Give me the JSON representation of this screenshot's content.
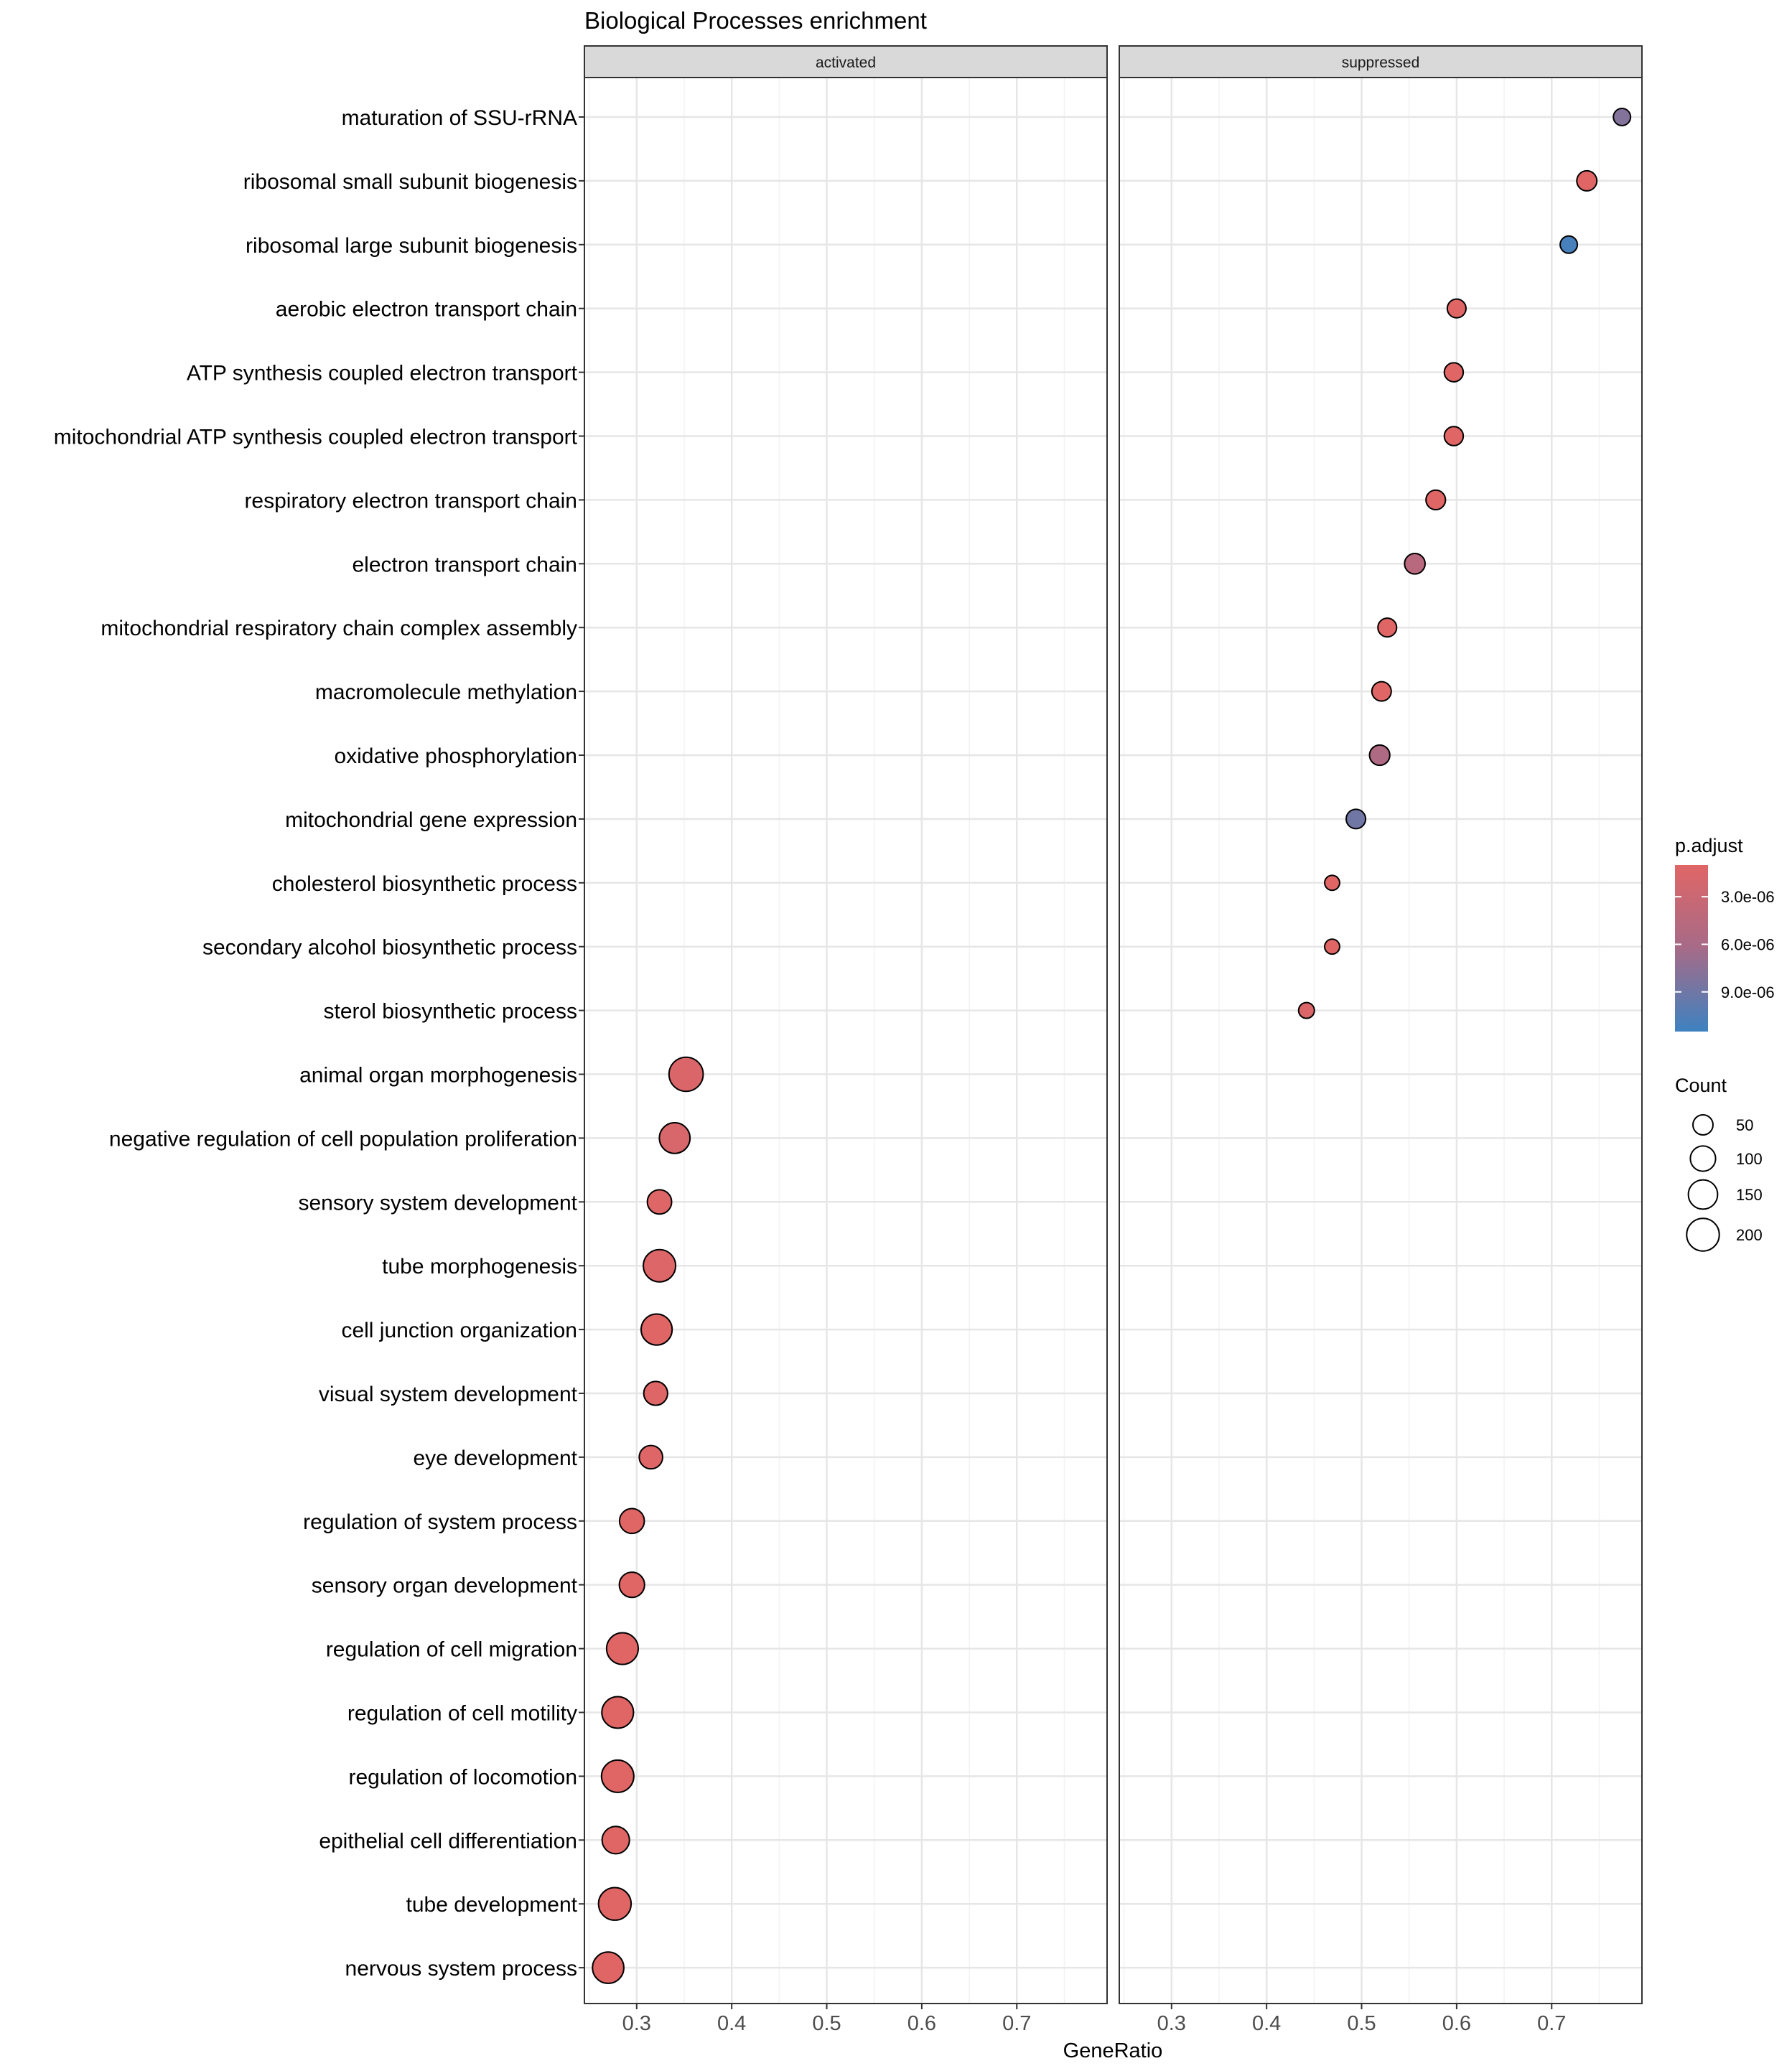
{
  "chart_data": {
    "type": "scatter",
    "title": "Biological Processes enrichment",
    "xlabel": "GeneRatio",
    "ylabel": "",
    "facets": [
      "activated",
      "suppressed"
    ],
    "xlim": [
      0.245,
      0.795
    ],
    "xticks": [
      0.3,
      0.4,
      0.5,
      0.6,
      0.7
    ],
    "xtick_labels": [
      "0.3",
      "0.4",
      "0.5",
      "0.6",
      "0.7"
    ],
    "grid": true,
    "categories": [
      "maturation of SSU-rRNA",
      "ribosomal small subunit biogenesis",
      "ribosomal large subunit biogenesis",
      "aerobic electron transport chain",
      "ATP synthesis coupled electron transport",
      "mitochondrial ATP synthesis coupled electron transport",
      "respiratory electron transport chain",
      "electron transport chain",
      "mitochondrial respiratory chain complex assembly",
      "macromolecule methylation",
      "oxidative phosphorylation",
      "mitochondrial gene expression",
      "cholesterol biosynthetic process",
      "secondary alcohol biosynthetic process",
      "sterol biosynthetic process",
      "animal organ morphogenesis",
      "negative regulation of cell population proliferation",
      "sensory system development",
      "tube morphogenesis",
      "cell junction organization",
      "visual system development",
      "eye development",
      "regulation of system process",
      "sensory organ development",
      "regulation of cell migration",
      "regulation of cell motility",
      "regulation of locomotion",
      "epithelial cell differentiation",
      "tube development",
      "nervous system process"
    ],
    "points": [
      {
        "term": "maturation of SSU-rRNA",
        "facet": "suppressed",
        "gene_ratio": 0.774,
        "count": 30,
        "p_adjust": 8e-06
      },
      {
        "term": "ribosomal small subunit biogenesis",
        "facet": "suppressed",
        "gene_ratio": 0.737,
        "count": 50,
        "p_adjust": 1e-06
      },
      {
        "term": "ribosomal large subunit biogenesis",
        "facet": "suppressed",
        "gene_ratio": 0.718,
        "count": 30,
        "p_adjust": 1.1e-05
      },
      {
        "term": "aerobic electron transport chain",
        "facet": "suppressed",
        "gene_ratio": 0.6,
        "count": 40,
        "p_adjust": 1e-06
      },
      {
        "term": "ATP synthesis coupled electron transport",
        "facet": "suppressed",
        "gene_ratio": 0.597,
        "count": 42,
        "p_adjust": 1e-06
      },
      {
        "term": "mitochondrial ATP synthesis coupled electron transport",
        "facet": "suppressed",
        "gene_ratio": 0.597,
        "count": 42,
        "p_adjust": 1e-06
      },
      {
        "term": "respiratory electron transport chain",
        "facet": "suppressed",
        "gene_ratio": 0.578,
        "count": 46,
        "p_adjust": 1e-06
      },
      {
        "term": "electron transport chain",
        "facet": "suppressed",
        "gene_ratio": 0.556,
        "count": 54,
        "p_adjust": 4.5e-06
      },
      {
        "term": "mitochondrial respiratory chain complex assembly",
        "facet": "suppressed",
        "gene_ratio": 0.527,
        "count": 40,
        "p_adjust": 1e-06
      },
      {
        "term": "macromolecule methylation",
        "facet": "suppressed",
        "gene_ratio": 0.521,
        "count": 45,
        "p_adjust": 1e-06
      },
      {
        "term": "oxidative phosphorylation",
        "facet": "suppressed",
        "gene_ratio": 0.519,
        "count": 52,
        "p_adjust": 5.5e-06
      },
      {
        "term": "mitochondrial gene expression",
        "facet": "suppressed",
        "gene_ratio": 0.494,
        "count": 45,
        "p_adjust": 9e-06
      },
      {
        "term": "cholesterol biosynthetic process",
        "facet": "suppressed",
        "gene_ratio": 0.469,
        "count": 18,
        "p_adjust": 1e-06
      },
      {
        "term": "secondary alcohol biosynthetic process",
        "facet": "suppressed",
        "gene_ratio": 0.469,
        "count": 18,
        "p_adjust": 1e-06
      },
      {
        "term": "sterol biosynthetic process",
        "facet": "suppressed",
        "gene_ratio": 0.442,
        "count": 22,
        "p_adjust": 1.5e-06
      },
      {
        "term": "animal organ morphogenesis",
        "facet": "activated",
        "gene_ratio": 0.352,
        "count": 225,
        "p_adjust": 1.5e-06
      },
      {
        "term": "negative regulation of cell population proliferation",
        "facet": "activated",
        "gene_ratio": 0.34,
        "count": 170,
        "p_adjust": 1.8e-06
      },
      {
        "term": "sensory system development",
        "facet": "activated",
        "gene_ratio": 0.324,
        "count": 90,
        "p_adjust": 1.2e-06
      },
      {
        "term": "tube morphogenesis",
        "facet": "activated",
        "gene_ratio": 0.324,
        "count": 195,
        "p_adjust": 1.3e-06
      },
      {
        "term": "cell junction organization",
        "facet": "activated",
        "gene_ratio": 0.321,
        "count": 175,
        "p_adjust": 1e-06
      },
      {
        "term": "visual system development",
        "facet": "activated",
        "gene_ratio": 0.32,
        "count": 85,
        "p_adjust": 1.2e-06
      },
      {
        "term": "eye development",
        "facet": "activated",
        "gene_ratio": 0.315,
        "count": 80,
        "p_adjust": 1.2e-06
      },
      {
        "term": "regulation of system process",
        "facet": "activated",
        "gene_ratio": 0.295,
        "count": 95,
        "p_adjust": 1e-06
      },
      {
        "term": "sensory organ development",
        "facet": "activated",
        "gene_ratio": 0.295,
        "count": 100,
        "p_adjust": 1e-06
      },
      {
        "term": "regulation of cell migration",
        "facet": "activated",
        "gene_ratio": 0.285,
        "count": 185,
        "p_adjust": 1e-06
      },
      {
        "term": "regulation of cell motility",
        "facet": "activated",
        "gene_ratio": 0.28,
        "count": 185,
        "p_adjust": 1e-06
      },
      {
        "term": "regulation of locomotion",
        "facet": "activated",
        "gene_ratio": 0.28,
        "count": 195,
        "p_adjust": 1e-06
      },
      {
        "term": "epithelial cell differentiation",
        "facet": "activated",
        "gene_ratio": 0.278,
        "count": 125,
        "p_adjust": 1e-06
      },
      {
        "term": "tube development",
        "facet": "activated",
        "gene_ratio": 0.277,
        "count": 200,
        "p_adjust": 1e-06
      },
      {
        "term": "nervous system process",
        "facet": "activated",
        "gene_ratio": 0.27,
        "count": 180,
        "p_adjust": 1e-06
      }
    ],
    "color_legend": {
      "title": "p.adjust",
      "labels": [
        "3.0e-06",
        "6.0e-06",
        "9.0e-06"
      ],
      "values": [
        3e-06,
        6e-06,
        9e-06
      ],
      "range": [
        1e-06,
        1.15e-05
      ],
      "low_color": "#E06666",
      "high_color": "#3E82C0"
    },
    "size_legend": {
      "title": "Count",
      "labels": [
        "50",
        "100",
        "150",
        "200"
      ],
      "values": [
        50,
        100,
        150,
        200
      ],
      "range": [
        15,
        230
      ]
    },
    "legend_position": "right"
  }
}
